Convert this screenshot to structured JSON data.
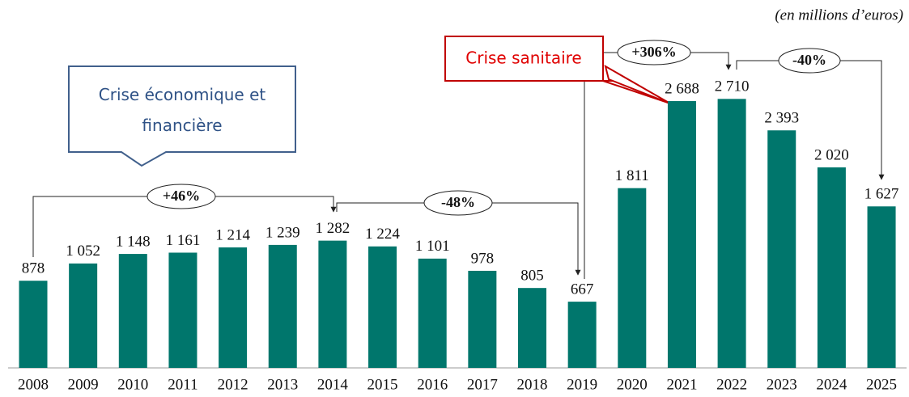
{
  "chart_data": {
    "type": "bar",
    "unit_note": "(en millions d’euros)",
    "categories": [
      "2008",
      "2009",
      "2010",
      "2011",
      "2012",
      "2013",
      "2014",
      "2015",
      "2016",
      "2017",
      "2018",
      "2019",
      "2020",
      "2021",
      "2022",
      "2023",
      "2024",
      "2025"
    ],
    "values": [
      878,
      1052,
      1148,
      1161,
      1214,
      1239,
      1282,
      1224,
      1101,
      978,
      805,
      667,
      1811,
      2688,
      2710,
      2393,
      2020,
      1627
    ],
    "value_labels": [
      "878",
      "1 052",
      "1 148",
      "1 161",
      "1 214",
      "1 239",
      "1 282",
      "1 224",
      "1 101",
      "978",
      "805",
      "667",
      "1 811",
      "2 688",
      "2 710",
      "2 393",
      "2 020",
      "1 627"
    ],
    "color": "#00766c",
    "ylim": [
      0,
      2900
    ],
    "annotations": [
      "Crise économique et financière",
      "Crise sanitaire",
      "+46%",
      "-48%",
      "+306%",
      "-40%"
    ]
  }
}
